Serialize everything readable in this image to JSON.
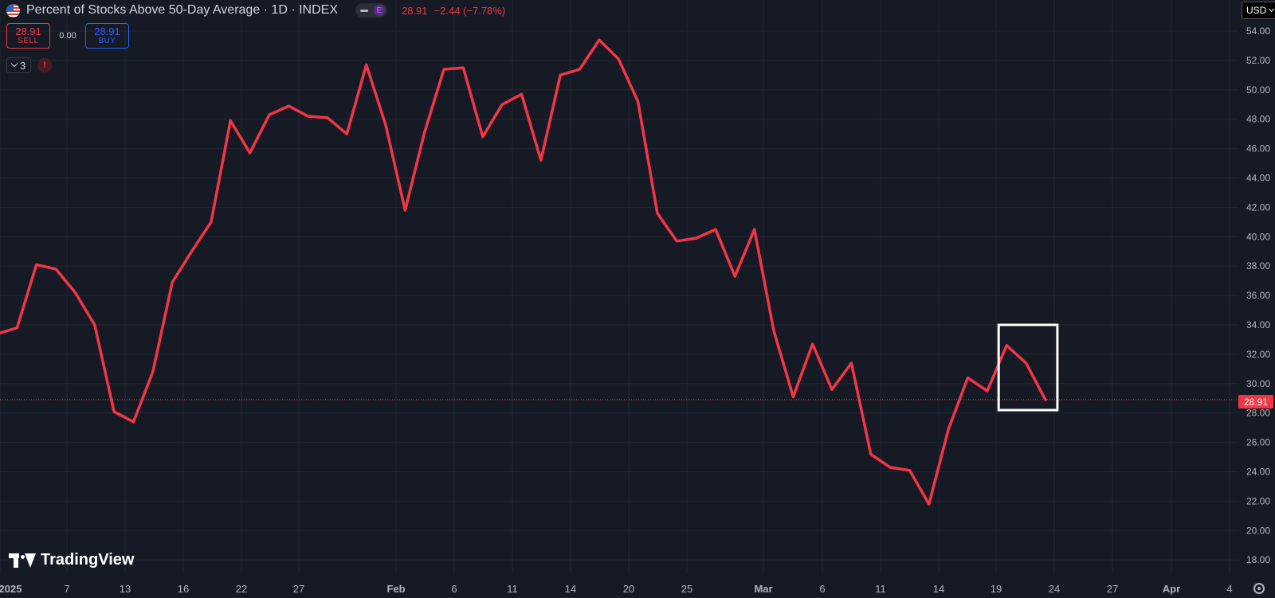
{
  "header": {
    "title": "Percent of Stocks Above 50-Day Average · 1D · INDEX",
    "pill_badge": "E",
    "last": "28.91",
    "change": "−2.44 (−7.78%)"
  },
  "trade": {
    "sell_price": "28.91",
    "sell_label": "SELL",
    "spread": "0.00",
    "buy_price": "28.91",
    "buy_label": "BUY"
  },
  "indicators": {
    "count": "3",
    "error_mark": "!"
  },
  "currency": "USD",
  "last_price_label": "28.91",
  "logo_text": "TradingView",
  "colors": {
    "background": "#161a25",
    "line": "#f23645",
    "grid": "#222634",
    "axis_text": "#b2b5be",
    "highlight_box": "#ffffff"
  },
  "chart_data": {
    "type": "line",
    "y_axis_labels": [
      "54.00",
      "52.00",
      "50.00",
      "48.00",
      "46.00",
      "44.00",
      "42.00",
      "40.00",
      "38.00",
      "36.00",
      "34.00",
      "32.00",
      "30.00",
      "28.00",
      "26.00",
      "24.00",
      "22.00",
      "20.00",
      "18.00"
    ],
    "x_axis_labels": [
      "2025",
      "7",
      "13",
      "16",
      "22",
      "27",
      "Feb",
      "6",
      "11",
      "14",
      "20",
      "25",
      "Mar",
      "6",
      "11",
      "14",
      "19",
      "24",
      "27",
      "Apr",
      "4"
    ],
    "ylim": [
      17,
      55
    ],
    "grid": true,
    "series": [
      {
        "values": [
          33.4,
          33.8,
          38.1,
          37.8,
          36.2,
          34.0,
          28.1,
          27.4,
          30.8,
          36.9,
          39.0,
          41.0,
          47.9,
          45.7,
          48.3,
          48.9,
          48.2,
          48.1,
          47.0,
          51.7,
          47.6,
          41.8,
          47.1,
          51.4,
          51.5,
          46.8,
          49.0,
          49.7,
          45.2,
          51.0,
          51.4,
          53.4,
          52.1,
          49.2,
          41.6,
          39.7,
          39.9,
          40.5,
          37.3,
          40.5,
          33.6,
          29.1,
          32.7,
          29.6,
          31.4,
          25.2,
          24.3,
          24.1,
          21.8,
          26.9,
          30.4,
          29.5,
          32.6,
          31.4,
          28.91
        ]
      }
    ],
    "last_value": 28.91,
    "highlight_box": {
      "from_index": 52,
      "to_index": 54,
      "y_range": [
        28.2,
        34.0
      ]
    }
  }
}
